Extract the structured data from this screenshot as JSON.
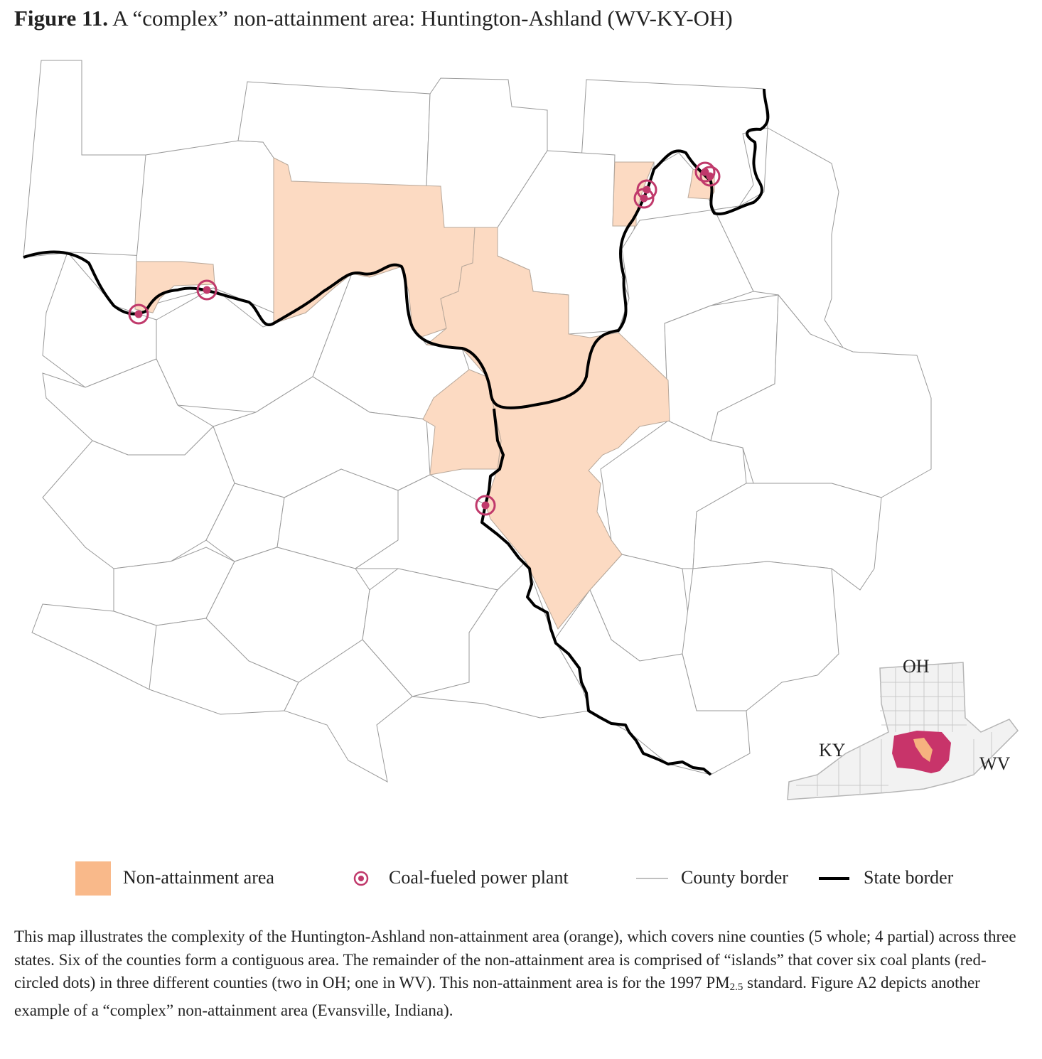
{
  "figure": {
    "label": "Figure 11.",
    "title": "A “complex” non-attainment area: Huntington-Ashland (WV-KY-OH)"
  },
  "inset": {
    "labels": [
      "OH",
      "KY",
      "WV"
    ]
  },
  "legend": [
    "Non-attainment area",
    "Coal-fueled power plant",
    "County border",
    "State border"
  ],
  "caption": {
    "before": "This map illustrates the complexity of the Huntington-Ashland non-attainment area (orange), which covers nine counties (5 whole; 4 partial) across three states. Six of the counties form a contiguous area. The remainder of the non-attainment area is comprised of “islands” that cover six coal plants (red-circled dots) in three different counties (two in OH; one in WV). This non-attainment area is for the 1997 PM",
    "subscript": "2.5",
    "after": " standard. Figure A2 depicts another example of a “complex” non-attainment area (Evansville, Indiana)."
  }
}
